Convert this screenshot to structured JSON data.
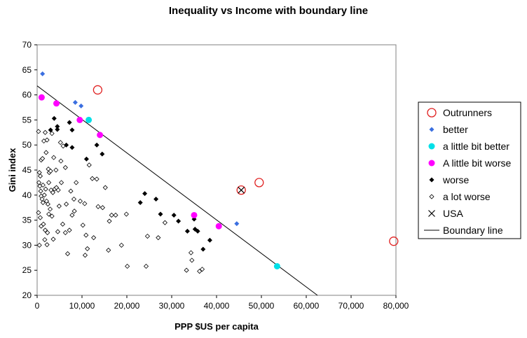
{
  "chart_data": {
    "type": "scatter",
    "title": "Inequality vs Income with boundary line",
    "xlabel": "PPP $US per capita",
    "ylabel": "Gini index",
    "xlim": [
      0,
      80000
    ],
    "ylim": [
      20,
      70
    ],
    "x_ticks": [
      0,
      10000,
      20000,
      30000,
      40000,
      50000,
      60000,
      70000,
      80000
    ],
    "x_tick_labels": [
      "0",
      "10,000",
      "20,000",
      "30,000",
      "40,000",
      "50,000",
      "60,000",
      "70,000",
      "80,000"
    ],
    "y_ticks": [
      20,
      25,
      30,
      35,
      40,
      45,
      50,
      55,
      60,
      65,
      70
    ],
    "y_tick_labels": [
      "20",
      "25",
      "30",
      "35",
      "40",
      "45",
      "50",
      "55",
      "60",
      "65",
      "70"
    ],
    "grid": false,
    "legend_position": "right",
    "series": [
      {
        "name": "Outrunners",
        "marker": "open-circle",
        "color": "#e02020",
        "points": [
          [
            13500,
            61
          ],
          [
            45500,
            41
          ],
          [
            49500,
            42.5
          ],
          [
            79500,
            30.8
          ]
        ]
      },
      {
        "name": "better",
        "marker": "filled-diamond",
        "color": "#3b6fe0",
        "points": [
          [
            1200,
            64.2
          ],
          [
            8500,
            58.5
          ],
          [
            9800,
            57.8
          ],
          [
            44500,
            34.3
          ]
        ]
      },
      {
        "name": "a little bit better",
        "marker": "filled-circle",
        "color": "#00e0e8",
        "points": [
          [
            11500,
            55
          ],
          [
            53500,
            25.8
          ]
        ]
      },
      {
        "name": "A little bit worse",
        "marker": "filled-circle",
        "color": "#ff00ff",
        "points": [
          [
            1000,
            59.5
          ],
          [
            4300,
            58.3
          ],
          [
            9500,
            55
          ],
          [
            14000,
            52
          ],
          [
            35000,
            36
          ],
          [
            40500,
            33.8
          ]
        ]
      },
      {
        "name": "worse",
        "marker": "filled-diamond",
        "color": "#000000",
        "points": [
          [
            3000,
            53
          ],
          [
            3800,
            55.3
          ],
          [
            4500,
            53.7
          ],
          [
            4500,
            53.1
          ],
          [
            6500,
            50
          ],
          [
            7200,
            54.5
          ],
          [
            7800,
            53
          ],
          [
            7800,
            49.5
          ],
          [
            11000,
            47.2
          ],
          [
            13300,
            50
          ],
          [
            14500,
            48.2
          ],
          [
            23000,
            38.5
          ],
          [
            24000,
            40.3
          ],
          [
            26500,
            39.2
          ],
          [
            27500,
            36.2
          ],
          [
            30500,
            36
          ],
          [
            31500,
            34.8
          ],
          [
            33500,
            32.8
          ],
          [
            35000,
            35.2
          ],
          [
            35200,
            33.2
          ],
          [
            35800,
            32.8
          ],
          [
            37000,
            29.2
          ],
          [
            38500,
            31
          ]
        ]
      },
      {
        "name": "a lot worse",
        "marker": "open-diamond",
        "color": "#000000",
        "points": [
          [
            300,
            52.7
          ],
          [
            500,
            44.5
          ],
          [
            700,
            43.8
          ],
          [
            900,
            47
          ],
          [
            1200,
            47.3
          ],
          [
            1300,
            42
          ],
          [
            1500,
            50.8
          ],
          [
            1800,
            52.5
          ],
          [
            2000,
            48.5
          ],
          [
            2200,
            51
          ],
          [
            2500,
            45.2
          ],
          [
            2700,
            44.5
          ],
          [
            3000,
            44.8
          ],
          [
            3300,
            52.3
          ],
          [
            3700,
            47.5
          ],
          [
            4200,
            45
          ],
          [
            5200,
            50.5
          ],
          [
            5800,
            49.8
          ],
          [
            6300,
            45.5
          ],
          [
            5300,
            46.8
          ],
          [
            400,
            42.5
          ],
          [
            600,
            41.8
          ],
          [
            800,
            40.8
          ],
          [
            900,
            39.8
          ],
          [
            1100,
            39.2
          ],
          [
            1300,
            38.5
          ],
          [
            1600,
            40
          ],
          [
            1900,
            41.2
          ],
          [
            2100,
            38.8
          ],
          [
            2400,
            38.2
          ],
          [
            2600,
            42.5
          ],
          [
            3100,
            41
          ],
          [
            3500,
            40.5
          ],
          [
            3900,
            41.2
          ],
          [
            4300,
            41.5
          ],
          [
            4700,
            41
          ],
          [
            4900,
            37.8
          ],
          [
            5400,
            42.5
          ],
          [
            6500,
            38.2
          ],
          [
            7500,
            40.8
          ],
          [
            8200,
            39.2
          ],
          [
            8700,
            42.5
          ],
          [
            300,
            36.5
          ],
          [
            700,
            35.5
          ],
          [
            900,
            33.8
          ],
          [
            1400,
            34.2
          ],
          [
            1800,
            33
          ],
          [
            2300,
            32.5
          ],
          [
            2600,
            36.2
          ],
          [
            2900,
            37.2
          ],
          [
            3300,
            35.8
          ],
          [
            3600,
            31.2
          ],
          [
            4600,
            32.7
          ],
          [
            5700,
            34.2
          ],
          [
            6300,
            32.5
          ],
          [
            6800,
            28.3
          ],
          [
            7200,
            33
          ],
          [
            7800,
            36
          ],
          [
            8300,
            36.8
          ],
          [
            9600,
            38.8
          ],
          [
            10200,
            34
          ],
          [
            10700,
            28
          ],
          [
            10600,
            38.3
          ],
          [
            11200,
            29.3
          ],
          [
            500,
            30
          ],
          [
            1700,
            31.1
          ],
          [
            2200,
            30.1
          ],
          [
            10900,
            32
          ],
          [
            12300,
            43.3
          ],
          [
            11600,
            46
          ],
          [
            12600,
            31.5
          ],
          [
            13300,
            43.2
          ],
          [
            13600,
            37.7
          ],
          [
            14600,
            37.5
          ],
          [
            15200,
            41.5
          ],
          [
            16100,
            34.8
          ],
          [
            16600,
            36
          ],
          [
            17500,
            36
          ],
          [
            15900,
            29
          ],
          [
            18800,
            30
          ],
          [
            19900,
            36.2
          ],
          [
            20100,
            25.8
          ],
          [
            24300,
            25.8
          ],
          [
            24600,
            31.8
          ],
          [
            27000,
            31.5
          ],
          [
            28500,
            34.5
          ],
          [
            33300,
            25
          ],
          [
            34300,
            28.5
          ],
          [
            34500,
            27
          ],
          [
            36200,
            24.8
          ],
          [
            36800,
            25.2
          ]
        ]
      },
      {
        "name": "USA",
        "marker": "x",
        "color": "#000000",
        "points": [
          [
            45500,
            41
          ]
        ]
      }
    ],
    "boundary_line": {
      "name": "Boundary line",
      "color": "#000000",
      "points": [
        [
          0,
          61.8
        ],
        [
          62500,
          20
        ]
      ]
    }
  }
}
